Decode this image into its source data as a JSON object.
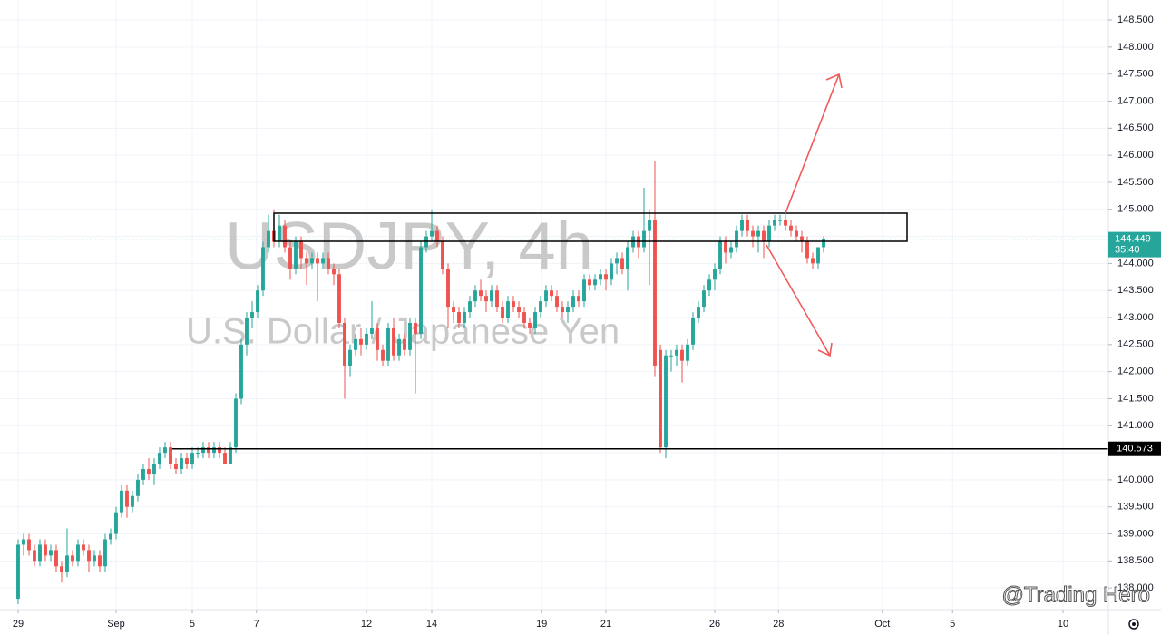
{
  "chart_data": {
    "type": "candlestick",
    "title": "USDJPY, 4h",
    "subtitle": "U.S. Dollar / Japanese Yen",
    "watermark": "@Trading Hero",
    "up_color": "#26a69a",
    "down_color": "#ef5350",
    "grid": true,
    "xlim": [
      -3.33,
      200.33
    ],
    "ylim": [
      137.6,
      148.87
    ],
    "xticks": [
      {
        "value": 0,
        "label": "29"
      },
      {
        "value": 18,
        "label": "Sep"
      },
      {
        "value": 32,
        "label": "5"
      },
      {
        "value": 43.8,
        "label": "7"
      },
      {
        "value": 64,
        "label": "12"
      },
      {
        "value": 76,
        "label": "14"
      },
      {
        "value": 96.2,
        "label": "19"
      },
      {
        "value": 108,
        "label": "21"
      },
      {
        "value": 128,
        "label": "26"
      },
      {
        "value": 139.7,
        "label": "28"
      },
      {
        "value": 158.8,
        "label": "Oct"
      },
      {
        "value": 171.7,
        "label": "5"
      },
      {
        "value": 192,
        "label": "10"
      }
    ],
    "yticks": [
      {
        "value": 138,
        "label": "138.000"
      },
      {
        "value": 138.5,
        "label": "138.500"
      },
      {
        "value": 139,
        "label": "139.000"
      },
      {
        "value": 139.5,
        "label": "139.500"
      },
      {
        "value": 140,
        "label": "140.000"
      },
      {
        "value": 140.5,
        "label": "140.500"
      },
      {
        "value": 141,
        "label": "141.000"
      },
      {
        "value": 141.5,
        "label": "141.500"
      },
      {
        "value": 142,
        "label": "142.000"
      },
      {
        "value": 142.5,
        "label": "142.500"
      },
      {
        "value": 143,
        "label": "143.000"
      },
      {
        "value": 143.5,
        "label": "143.500"
      },
      {
        "value": 144,
        "label": "144.000"
      },
      {
        "value": 144.5,
        "label": "144.500"
      },
      {
        "value": 145,
        "label": "145.000"
      },
      {
        "value": 145.5,
        "label": "145.500"
      },
      {
        "value": 146,
        "label": "146.000"
      },
      {
        "value": 146.5,
        "label": "146.500"
      },
      {
        "value": 147,
        "label": "147.000"
      },
      {
        "value": 147.5,
        "label": "147.500"
      },
      {
        "value": 148,
        "label": "148.000"
      },
      {
        "value": 148.5,
        "label": "148.500"
      }
    ],
    "level": {
      "value": 140.573,
      "label": "140.573"
    },
    "last_price": {
      "value": 144.449,
      "label": "144.449"
    },
    "countdown": "35:40",
    "ohlc": [
      [
        137.8,
        138.9,
        137.7,
        138.8
      ],
      [
        138.8,
        139.0,
        138.6,
        138.9
      ],
      [
        138.9,
        139.0,
        138.6,
        138.7
      ],
      [
        138.7,
        138.8,
        138.4,
        138.5
      ],
      [
        138.5,
        138.9,
        138.4,
        138.8
      ],
      [
        138.8,
        138.9,
        138.5,
        138.6
      ],
      [
        138.6,
        138.8,
        138.5,
        138.7
      ],
      [
        138.7,
        138.8,
        138.3,
        138.4
      ],
      [
        138.4,
        138.5,
        138.1,
        138.3
      ],
      [
        138.3,
        139.1,
        138.2,
        138.6
      ],
      [
        138.6,
        138.7,
        138.4,
        138.5
      ],
      [
        138.5,
        138.9,
        138.4,
        138.8
      ],
      [
        138.8,
        138.9,
        138.6,
        138.7
      ],
      [
        138.7,
        138.8,
        138.3,
        138.5
      ],
      [
        138.5,
        138.7,
        138.4,
        138.6
      ],
      [
        138.6,
        138.7,
        138.3,
        138.4
      ],
      [
        138.4,
        139.0,
        138.3,
        138.9
      ],
      [
        138.9,
        139.1,
        138.8,
        139.0
      ],
      [
        139.0,
        139.5,
        138.9,
        139.4
      ],
      [
        139.4,
        139.9,
        139.3,
        139.8
      ],
      [
        139.8,
        139.9,
        139.3,
        139.5
      ],
      [
        139.5,
        139.8,
        139.4,
        139.7
      ],
      [
        139.7,
        140.1,
        139.6,
        140.0
      ],
      [
        140.0,
        140.3,
        139.9,
        140.2
      ],
      [
        140.2,
        140.4,
        140.0,
        140.1
      ],
      [
        140.1,
        140.4,
        139.9,
        140.3
      ],
      [
        140.3,
        140.6,
        140.2,
        140.5
      ],
      [
        140.5,
        140.7,
        140.4,
        140.6
      ],
      [
        140.6,
        140.7,
        140.2,
        140.3
      ],
      [
        140.3,
        140.4,
        140.1,
        140.2
      ],
      [
        140.2,
        140.5,
        140.1,
        140.4
      ],
      [
        140.4,
        140.5,
        140.2,
        140.3
      ],
      [
        140.3,
        140.6,
        140.2,
        140.5
      ],
      [
        140.5,
        140.6,
        140.4,
        140.5
      ],
      [
        140.5,
        140.7,
        140.4,
        140.6
      ],
      [
        140.6,
        140.7,
        140.4,
        140.5
      ],
      [
        140.5,
        140.7,
        140.4,
        140.6
      ],
      [
        140.6,
        140.7,
        140.4,
        140.5
      ],
      [
        140.5,
        140.6,
        140.3,
        140.3
      ],
      [
        140.3,
        140.7,
        140.3,
        140.6
      ],
      [
        140.6,
        141.6,
        140.5,
        141.5
      ],
      [
        141.5,
        142.6,
        141.4,
        142.5
      ],
      [
        142.5,
        143.1,
        142.3,
        143.0
      ],
      [
        143.0,
        143.3,
        142.8,
        143.1
      ],
      [
        143.1,
        143.6,
        143.0,
        143.5
      ],
      [
        143.5,
        144.4,
        143.4,
        144.3
      ],
      [
        144.3,
        144.9,
        144.2,
        144.6
      ],
      [
        144.6,
        145.0,
        144.3,
        144.4
      ],
      [
        144.4,
        144.9,
        144.3,
        144.7
      ],
      [
        144.7,
        144.8,
        144.2,
        144.3
      ],
      [
        144.3,
        144.4,
        143.7,
        143.9
      ],
      [
        143.9,
        144.5,
        143.8,
        144.4
      ],
      [
        144.4,
        144.5,
        143.9,
        144.1
      ],
      [
        144.1,
        144.2,
        143.6,
        144.0
      ],
      [
        144.0,
        144.2,
        143.9,
        144.1
      ],
      [
        144.1,
        144.2,
        143.3,
        144.0
      ],
      [
        144.0,
        144.2,
        143.9,
        144.1
      ],
      [
        144.1,
        144.2,
        143.8,
        143.9
      ],
      [
        143.9,
        144.0,
        143.6,
        143.8
      ],
      [
        143.8,
        143.9,
        142.8,
        142.9
      ],
      [
        142.9,
        143.0,
        141.5,
        142.1
      ],
      [
        142.1,
        142.5,
        141.9,
        142.4
      ],
      [
        142.4,
        142.7,
        142.3,
        142.6
      ],
      [
        142.6,
        142.8,
        142.3,
        142.5
      ],
      [
        142.5,
        142.8,
        142.4,
        142.7
      ],
      [
        142.7,
        143.3,
        142.6,
        142.8
      ],
      [
        142.8,
        142.9,
        142.2,
        142.4
      ],
      [
        142.4,
        142.5,
        142.1,
        142.2
      ],
      [
        142.2,
        142.9,
        142.1,
        142.8
      ],
      [
        142.8,
        143.0,
        142.2,
        142.3
      ],
      [
        142.3,
        142.7,
        142.2,
        142.6
      ],
      [
        142.6,
        142.7,
        142.3,
        142.4
      ],
      [
        142.4,
        143.0,
        142.3,
        142.9
      ],
      [
        142.9,
        143.0,
        141.6,
        142.7
      ],
      [
        142.7,
        144.4,
        142.6,
        144.3
      ],
      [
        144.3,
        144.6,
        144.2,
        144.5
      ],
      [
        144.5,
        145.0,
        144.4,
        144.6
      ],
      [
        144.6,
        144.7,
        144.3,
        144.4
      ],
      [
        144.4,
        144.5,
        143.8,
        143.9
      ],
      [
        143.9,
        144.0,
        142.8,
        143.2
      ],
      [
        143.2,
        143.3,
        142.9,
        143.1
      ],
      [
        143.1,
        143.2,
        142.8,
        142.9
      ],
      [
        142.9,
        143.2,
        142.8,
        143.1
      ],
      [
        143.1,
        143.4,
        143.0,
        143.3
      ],
      [
        143.3,
        143.6,
        143.2,
        143.5
      ],
      [
        143.5,
        143.7,
        143.3,
        143.4
      ],
      [
        143.4,
        143.5,
        143.1,
        143.3
      ],
      [
        143.3,
        143.6,
        143.2,
        143.5
      ],
      [
        143.5,
        143.6,
        143.1,
        143.2
      ],
      [
        143.2,
        143.3,
        142.9,
        143.0
      ],
      [
        143.0,
        143.4,
        142.9,
        143.3
      ],
      [
        143.3,
        143.4,
        143.1,
        143.2
      ],
      [
        143.2,
        143.3,
        143.0,
        143.1
      ],
      [
        143.1,
        143.2,
        142.8,
        142.9
      ],
      [
        142.9,
        143.0,
        142.7,
        142.8
      ],
      [
        142.8,
        143.2,
        142.7,
        143.1
      ],
      [
        143.1,
        143.4,
        143.0,
        143.3
      ],
      [
        143.3,
        143.6,
        143.2,
        143.5
      ],
      [
        143.5,
        143.6,
        143.3,
        143.4
      ],
      [
        143.4,
        143.5,
        143.1,
        143.2
      ],
      [
        143.2,
        143.3,
        143.0,
        143.1
      ],
      [
        143.1,
        143.3,
        142.9,
        143.2
      ],
      [
        143.2,
        143.5,
        143.1,
        143.4
      ],
      [
        143.4,
        143.5,
        143.2,
        143.3
      ],
      [
        143.3,
        143.8,
        143.2,
        143.7
      ],
      [
        143.7,
        143.8,
        143.5,
        143.6
      ],
      [
        143.6,
        143.8,
        143.5,
        143.7
      ],
      [
        143.7,
        143.9,
        143.6,
        143.8
      ],
      [
        143.8,
        143.9,
        143.5,
        143.7
      ],
      [
        143.7,
        144.1,
        143.6,
        144.0
      ],
      [
        144.0,
        144.2,
        143.8,
        144.1
      ],
      [
        144.1,
        144.2,
        143.8,
        143.9
      ],
      [
        143.9,
        144.4,
        143.5,
        144.3
      ],
      [
        144.3,
        144.6,
        144.2,
        144.5
      ],
      [
        144.5,
        144.6,
        144.1,
        144.3
      ],
      [
        144.3,
        145.4,
        144.2,
        144.6
      ],
      [
        144.6,
        145.0,
        143.6,
        144.8
      ],
      [
        144.8,
        145.9,
        141.9,
        142.1
      ],
      [
        142.4,
        142.5,
        140.5,
        140.6
      ],
      [
        140.6,
        142.4,
        140.4,
        142.3
      ],
      [
        142.3,
        142.4,
        142.0,
        142.3
      ],
      [
        142.3,
        142.5,
        142.1,
        142.4
      ],
      [
        142.4,
        142.5,
        141.8,
        142.2
      ],
      [
        142.2,
        142.6,
        142.1,
        142.5
      ],
      [
        142.5,
        143.1,
        142.4,
        143.0
      ],
      [
        143.0,
        143.3,
        142.9,
        143.2
      ],
      [
        143.2,
        143.6,
        143.1,
        143.5
      ],
      [
        143.5,
        143.8,
        143.4,
        143.7
      ],
      [
        143.7,
        144.0,
        143.5,
        143.9
      ],
      [
        143.9,
        144.5,
        143.8,
        144.4
      ],
      [
        144.4,
        144.5,
        144.0,
        144.2
      ],
      [
        144.2,
        144.4,
        144.1,
        144.3
      ],
      [
        144.3,
        144.7,
        144.2,
        144.6
      ],
      [
        144.6,
        144.9,
        144.5,
        144.8
      ],
      [
        144.8,
        144.9,
        144.5,
        144.6
      ],
      [
        144.6,
        144.7,
        144.3,
        144.5
      ],
      [
        144.5,
        144.7,
        144.2,
        144.6
      ],
      [
        144.6,
        144.7,
        144.1,
        144.4
      ],
      [
        144.4,
        144.8,
        144.3,
        144.7
      ],
      [
        144.7,
        144.9,
        144.6,
        144.8
      ],
      [
        144.8,
        144.9,
        144.7,
        144.8
      ],
      [
        144.8,
        144.9,
        144.6,
        144.7
      ],
      [
        144.7,
        144.8,
        144.5,
        144.6
      ],
      [
        144.6,
        144.7,
        144.4,
        144.5
      ],
      [
        144.5,
        144.6,
        144.2,
        144.4
      ],
      [
        144.4,
        144.5,
        144.0,
        144.1
      ],
      [
        144.1,
        144.2,
        143.9,
        144.0
      ],
      [
        144.0,
        144.3,
        143.9,
        144.3
      ],
      [
        144.3,
        144.5,
        144.2,
        144.449
      ]
    ]
  }
}
